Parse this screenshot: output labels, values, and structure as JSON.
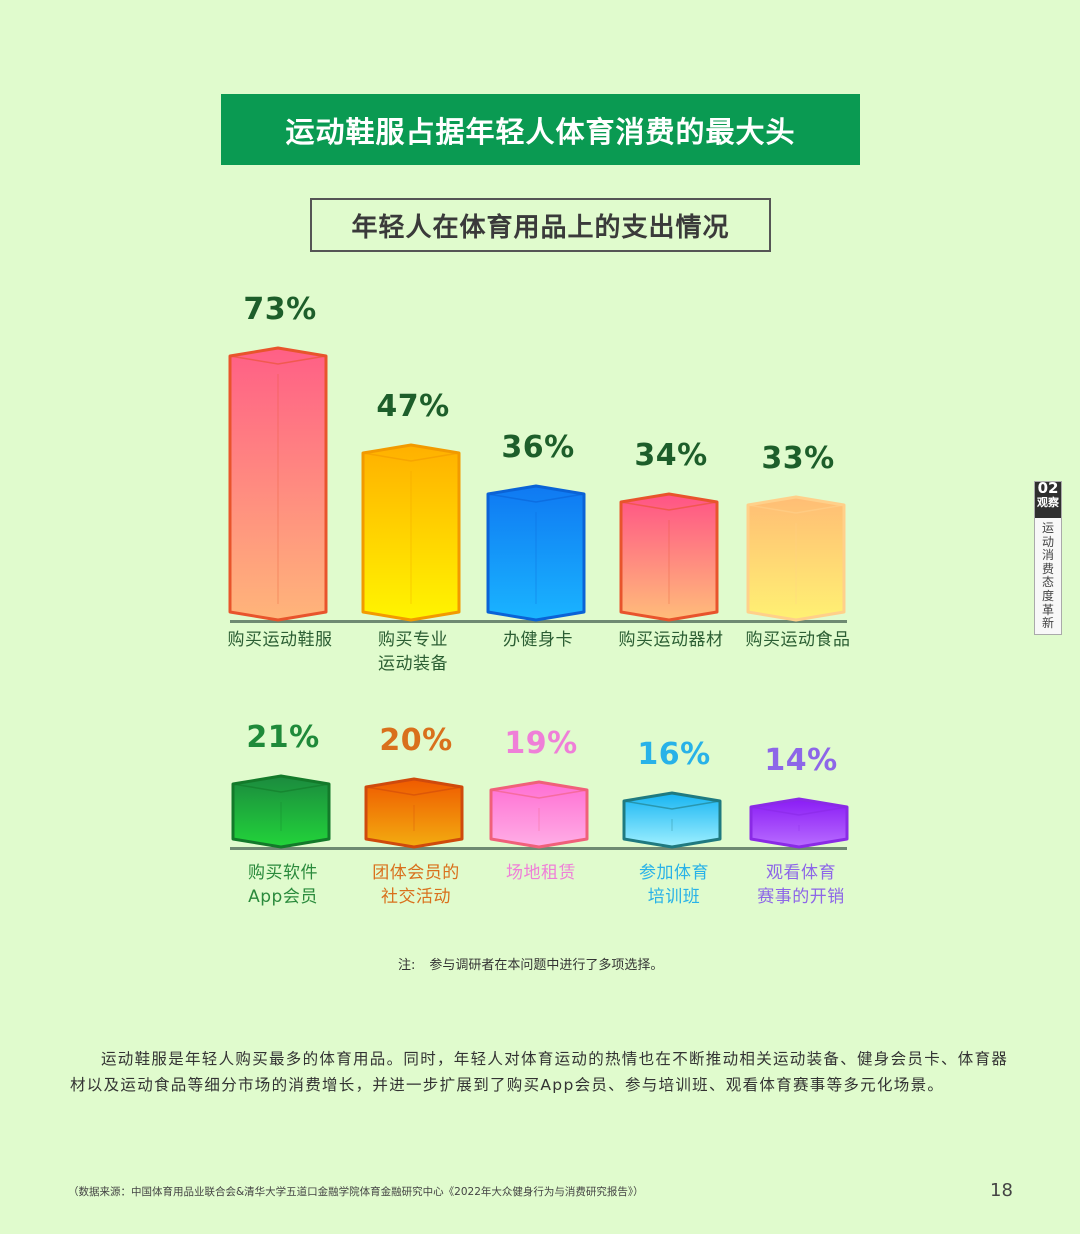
{
  "header": {
    "title": "运动鞋服占据年轻人体育消费的最大头",
    "subtitle": "年轻人在体育用品上的支出情况"
  },
  "side_tab": {
    "number": "02",
    "category": "观察",
    "section": "运动消费态度革新"
  },
  "chart_data": {
    "type": "bar",
    "title": "年轻人在体育用品上的支出情况",
    "xlabel": "",
    "ylabel": "",
    "ylim": [
      0,
      100
    ],
    "grid": false,
    "legend": "none",
    "categories": [
      "购买运动鞋服",
      "购买专业运动装备",
      "办健身卡",
      "购买运动器材",
      "购买运动食品",
      "购买软件App会员",
      "团体会员的社交活动",
      "场地租赁",
      "参加体育培训班",
      "观看体育赛事的开销"
    ],
    "values": [
      73,
      47,
      36,
      34,
      33,
      21,
      20,
      19,
      16,
      14
    ],
    "unit": "%",
    "rows": [
      {
        "bars": [
          {
            "label_lines": [
              "购买运动鞋服"
            ],
            "value": 73,
            "value_text": "73%",
            "value_color": "#1d5e2a",
            "label_color": "#2b5e33",
            "top": "#ff5f86",
            "bottom": "#ffb57a",
            "stroke": "#e8542c"
          },
          {
            "label_lines": [
              "购买专业",
              "运动装备"
            ],
            "value": 47,
            "value_text": "47%",
            "value_color": "#1d5e2a",
            "label_color": "#2b5e33",
            "top": "#ffb000",
            "bottom": "#fff500",
            "stroke": "#f29a00"
          },
          {
            "label_lines": [
              "办健身卡"
            ],
            "value": 36,
            "value_text": "36%",
            "value_color": "#1d5e2a",
            "label_color": "#2b5e33",
            "top": "#0f79f2",
            "bottom": "#1ab4ff",
            "stroke": "#0a63d6"
          },
          {
            "label_lines": [
              "购买运动器材"
            ],
            "value": 34,
            "value_text": "34%",
            "value_color": "#1d5e2a",
            "label_color": "#2b5e33",
            "top": "#ff5386",
            "bottom": "#ffbd7a",
            "stroke": "#e8542c"
          },
          {
            "label_lines": [
              "购买运动食品"
            ],
            "value": 33,
            "value_text": "33%",
            "value_color": "#1d5e2a",
            "label_color": "#2b5e33",
            "top": "#ffbd75",
            "bottom": "#fff173",
            "stroke": "#ffd08a"
          }
        ]
      },
      {
        "bars": [
          {
            "label_lines": [
              "购买软件",
              "App会员"
            ],
            "value": 21,
            "value_text": "21%",
            "value_color": "#1f8a3a",
            "label_color": "#2a8a3c",
            "top": "#1b8a3e",
            "bottom": "#22d43a",
            "stroke": "#137a2a"
          },
          {
            "label_lines": [
              "团体会员的",
              "社交活动"
            ],
            "value": 20,
            "value_text": "20%",
            "value_color": "#d9701c",
            "label_color": "#d9701c",
            "top": "#ef5a00",
            "bottom": "#f3ac10",
            "stroke": "#cf4a0c"
          },
          {
            "label_lines": [
              "场地租赁"
            ],
            "value": 19,
            "value_text": "19%",
            "value_color": "#ef7fd8",
            "label_color": "#ef7fd8",
            "top": "#ff6fd3",
            "bottom": "#ffaee6",
            "stroke": "#f0607a"
          },
          {
            "label_lines": [
              "参加体育",
              "培训班"
            ],
            "value": 16,
            "value_text": "16%",
            "value_color": "#28b2e8",
            "label_color": "#28b2e8",
            "top": "#17b4f2",
            "bottom": "#9ff0ff",
            "stroke": "#1f7a80"
          },
          {
            "label_lines": [
              "观看体育",
              "赛事的开销"
            ],
            "value": 14,
            "value_text": "14%",
            "value_color": "#8d66e8",
            "label_color": "#8d66e8",
            "top": "#8a1cf5",
            "bottom": "#b86cff",
            "stroke": "#8a2ae6"
          }
        ]
      }
    ]
  },
  "note": {
    "label": "注:",
    "text": "参与调研者在本问题中进行了多项选择。"
  },
  "body_text": "运动鞋服是年轻人购买最多的体育用品。同时，年轻人对体育运动的热情也在不断推动相关运动装备、健身会员卡、体育器材以及运动食品等细分市场的消费增长，并进一步扩展到了购买App会员、参与培训班、观看体育赛事等多元化场景。",
  "source": "（数据来源：中国体育用品业联合会&清华大学五道口金融学院体育金融研究中心《2022年大众健身行为与消费研究报告》）",
  "page_number": "18"
}
